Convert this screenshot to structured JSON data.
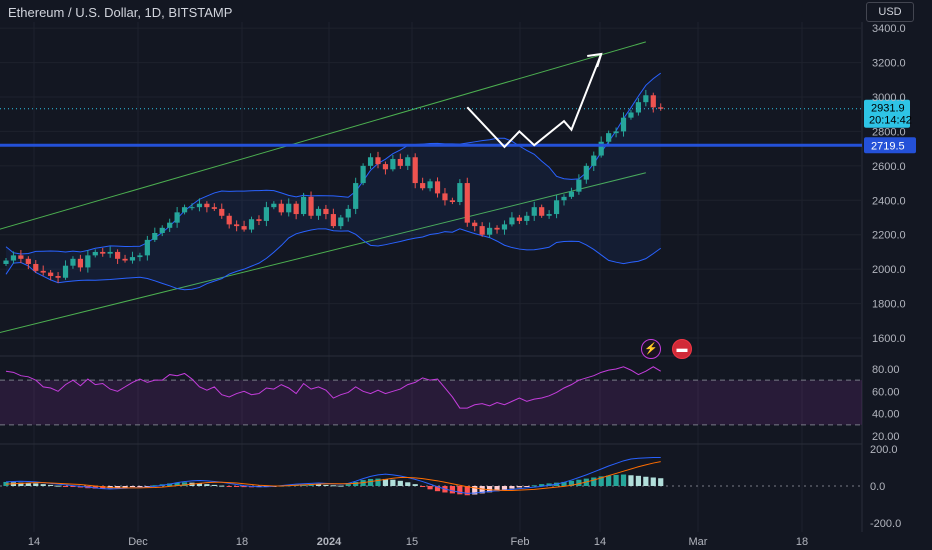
{
  "header": {
    "title": "Ethereum / U.S. Dollar, 1D, BITSTAMP",
    "currency": "USD"
  },
  "colors": {
    "background": "#131722",
    "up": "#26a69a",
    "down": "#ef5350",
    "channel": "#4caf50",
    "bollinger": "#2962ff",
    "level_line": "#2451d8",
    "rsi": "#c43ddc",
    "macd": "#2962ff",
    "signal": "#ff6d00",
    "last_price_label": "#2ec4e6",
    "projection": "#ffffff"
  },
  "icons": [
    "flash-icon",
    "flag-icon"
  ],
  "chart_data": [
    {
      "type": "candlestick",
      "title": "Ethereum / U.S. Dollar, 1D, BITSTAMP",
      "x_ticks": [
        "14",
        "Dec",
        "18",
        "2024",
        "15",
        "Feb",
        "14",
        "Mar",
        "18"
      ],
      "y_ticks": [
        "3400.0",
        "3200.0",
        "3000.0",
        "2800.0",
        "2600.0",
        "2400.0",
        "2200.0",
        "2000.0",
        "1800.0",
        "1600.0"
      ],
      "ylim": [
        1500,
        3500
      ],
      "last_price": "2931.9",
      "countdown": "20:14:42",
      "horizontal_level": "2719.5",
      "channel": {
        "upper": [
          [
            -1,
            2230
          ],
          [
            86,
            3320
          ]
        ],
        "lower": [
          [
            -1,
            1630
          ],
          [
            86,
            2560
          ]
        ]
      },
      "projection_path": [
        [
          62,
          2940
        ],
        [
          67,
          2710
        ],
        [
          69,
          2800
        ],
        [
          71,
          2720
        ],
        [
          75,
          2860
        ],
        [
          76,
          2810
        ],
        [
          80,
          3250
        ]
      ],
      "closes": [
        2050,
        2080,
        2060,
        2030,
        1990,
        1980,
        1960,
        1950,
        2020,
        2060,
        2010,
        2080,
        2100,
        2090,
        2100,
        2060,
        2050,
        2070,
        2080,
        2170,
        2210,
        2240,
        2270,
        2330,
        2360,
        2360,
        2380,
        2360,
        2350,
        2310,
        2260,
        2250,
        2230,
        2290,
        2280,
        2360,
        2380,
        2330,
        2380,
        2320,
        2420,
        2310,
        2350,
        2320,
        2250,
        2300,
        2350,
        2500,
        2600,
        2650,
        2610,
        2580,
        2640,
        2600,
        2650,
        2500,
        2470,
        2510,
        2440,
        2400,
        2390,
        2500,
        2270,
        2250,
        2200,
        2240,
        2230,
        2260,
        2300,
        2280,
        2310,
        2360,
        2310,
        2320,
        2400,
        2420,
        2450,
        2520,
        2600,
        2660,
        2740,
        2790,
        2800,
        2880,
        2910,
        2970,
        3010,
        2940,
        2931.9
      ]
    },
    {
      "type": "line",
      "name": "RSI",
      "y_ticks": [
        "80.00",
        "60.00",
        "40.00",
        "20.00"
      ],
      "ylim": [
        15,
        95
      ],
      "bands": [
        30,
        70
      ],
      "values": [
        78,
        77,
        74,
        73,
        70,
        64,
        63,
        60,
        66,
        70,
        65,
        71,
        66,
        67,
        62,
        60,
        64,
        68,
        71,
        68,
        70,
        70,
        75,
        74,
        76,
        71,
        64,
        61,
        64,
        57,
        55,
        58,
        60,
        57,
        58,
        63,
        62,
        66,
        63,
        58,
        67,
        62,
        64,
        61,
        54,
        57,
        59,
        64,
        60,
        58,
        61,
        58,
        60,
        62,
        66,
        68,
        72,
        70,
        71,
        63,
        55,
        45,
        45,
        48,
        49,
        47,
        50,
        48,
        51,
        54,
        51,
        53,
        54,
        56,
        59,
        63,
        66,
        70,
        72,
        74,
        77,
        79,
        80,
        82,
        79,
        75,
        78,
        82,
        78
      ]
    },
    {
      "type": "bar+line",
      "name": "MACD",
      "y_ticks": [
        "200.0",
        "0.0",
        "-200.0"
      ],
      "ylim": [
        -250,
        250
      ],
      "histogram": [
        22,
        20,
        18,
        16,
        14,
        10,
        6,
        2,
        -2,
        -5,
        -8,
        -12,
        -14,
        -15,
        -12,
        -10,
        -8,
        -6,
        -4,
        -2,
        4,
        9,
        14,
        18,
        20,
        18,
        14,
        10,
        6,
        2,
        -2,
        -4,
        -6,
        -7,
        -6,
        -4,
        -2,
        2,
        4,
        6,
        8,
        10,
        8,
        6,
        4,
        2,
        10,
        22,
        32,
        38,
        40,
        38,
        34,
        28,
        20,
        10,
        -5,
        -18,
        -28,
        -35,
        -40,
        -45,
        -50,
        -46,
        -40,
        -34,
        -28,
        -20,
        -14,
        -8,
        -2,
        4,
        10,
        14,
        18,
        22,
        28,
        34,
        40,
        46,
        52,
        56,
        60,
        62,
        58,
        55,
        50,
        46,
        42
      ],
      "macd_line": [
        22,
        24,
        26,
        24,
        22,
        18,
        14,
        10,
        6,
        2,
        -2,
        -6,
        -10,
        -14,
        -16,
        -14,
        -12,
        -10,
        -8,
        -6,
        -2,
        4,
        10,
        18,
        24,
        28,
        30,
        28,
        24,
        20,
        14,
        8,
        2,
        -2,
        -4,
        -4,
        -2,
        2,
        6,
        10,
        12,
        14,
        16,
        14,
        12,
        10,
        14,
        26,
        40,
        52,
        60,
        64,
        60,
        54,
        46,
        36,
        24,
        10,
        -4,
        -16,
        -26,
        -34,
        -40,
        -38,
        -34,
        -30,
        -26,
        -22,
        -18,
        -14,
        -10,
        -6,
        -2,
        4,
        10,
        20,
        32,
        46,
        60,
        76,
        92,
        108,
        122,
        136,
        146,
        150,
        152,
        154,
        154
      ],
      "signal_line": [
        10,
        12,
        14,
        16,
        18,
        18,
        16,
        14,
        12,
        10,
        8,
        4,
        0,
        -4,
        -8,
        -10,
        -10,
        -10,
        -10,
        -9,
        -8,
        -6,
        -2,
        2,
        6,
        10,
        14,
        18,
        20,
        20,
        18,
        16,
        12,
        8,
        4,
        2,
        0,
        0,
        2,
        4,
        6,
        8,
        10,
        12,
        12,
        12,
        12,
        14,
        18,
        24,
        30,
        36,
        42,
        46,
        46,
        44,
        40,
        34,
        28,
        20,
        12,
        4,
        -4,
        -10,
        -16,
        -20,
        -22,
        -24,
        -24,
        -22,
        -20,
        -18,
        -14,
        -10,
        -6,
        -2,
        4,
        12,
        22,
        32,
        44,
        56,
        68,
        80,
        92,
        104,
        114,
        124,
        132
      ]
    }
  ]
}
